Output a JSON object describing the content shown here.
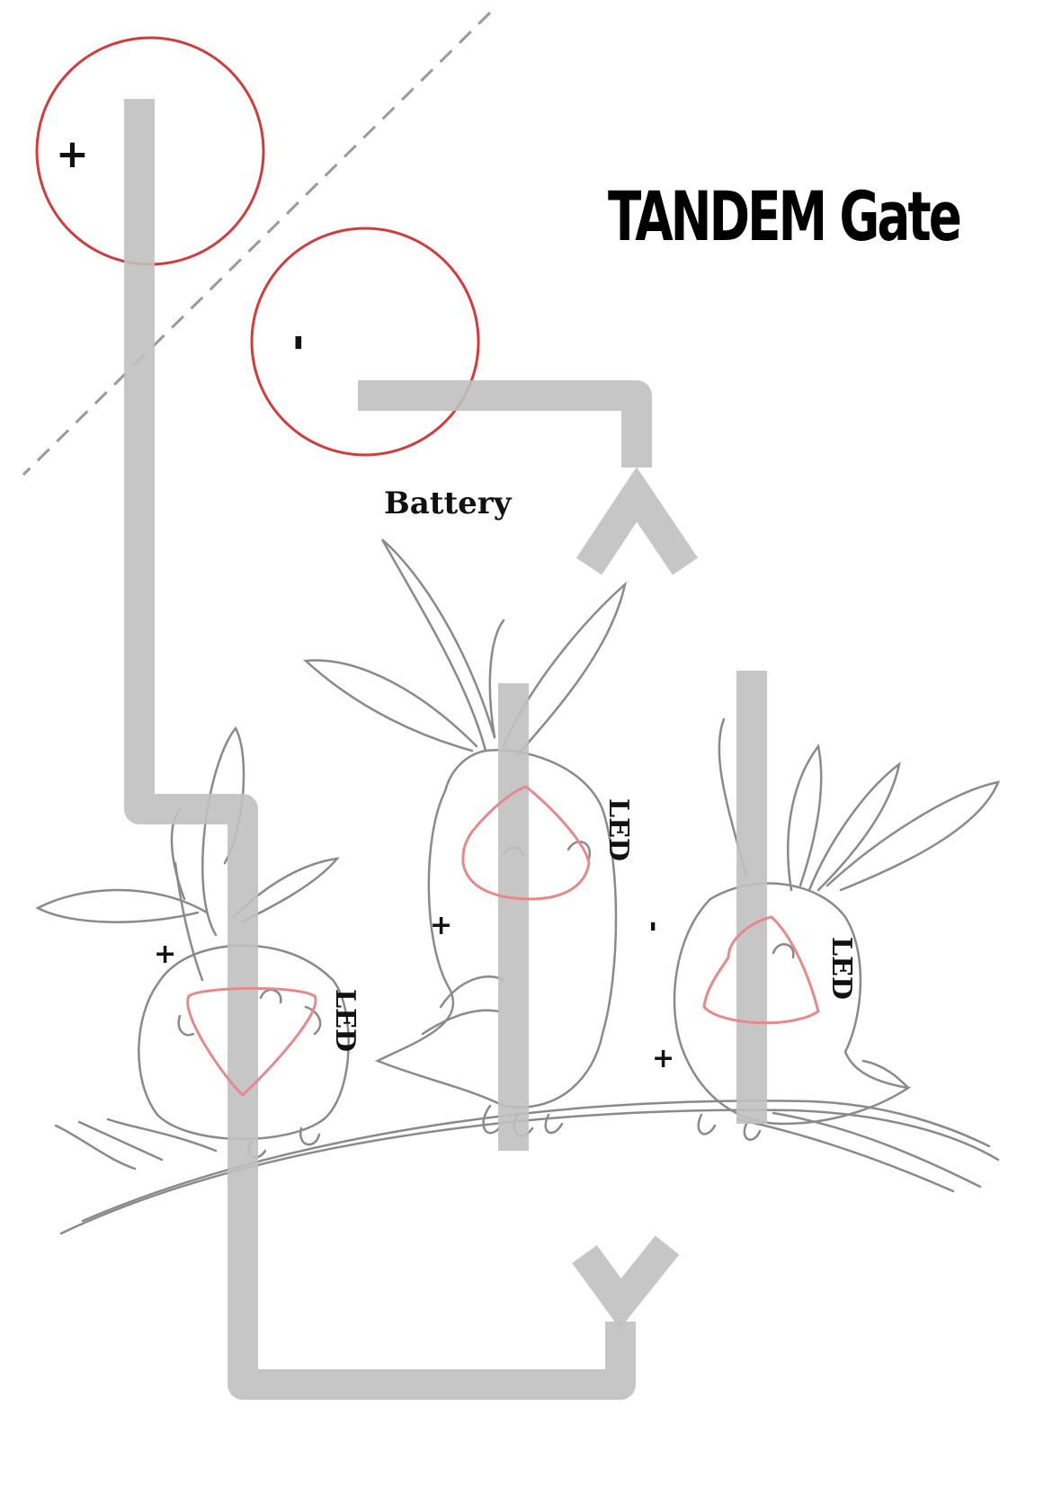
{
  "title": "TANDEM Gate",
  "battery_label": "Battery",
  "battery_terminals": {
    "positive": "+",
    "negative": "-"
  },
  "led_labels": [
    "LED",
    "LED",
    "LED"
  ],
  "polarity_marks": [
    "+",
    "+",
    "-",
    "+"
  ],
  "colors": {
    "wire": "#c0c0c0",
    "battery_circle": "#d23b3b",
    "led_outline": "#e58a8a",
    "sketch": "#8a8a8a",
    "dashed_line": "#9a9a9a"
  }
}
